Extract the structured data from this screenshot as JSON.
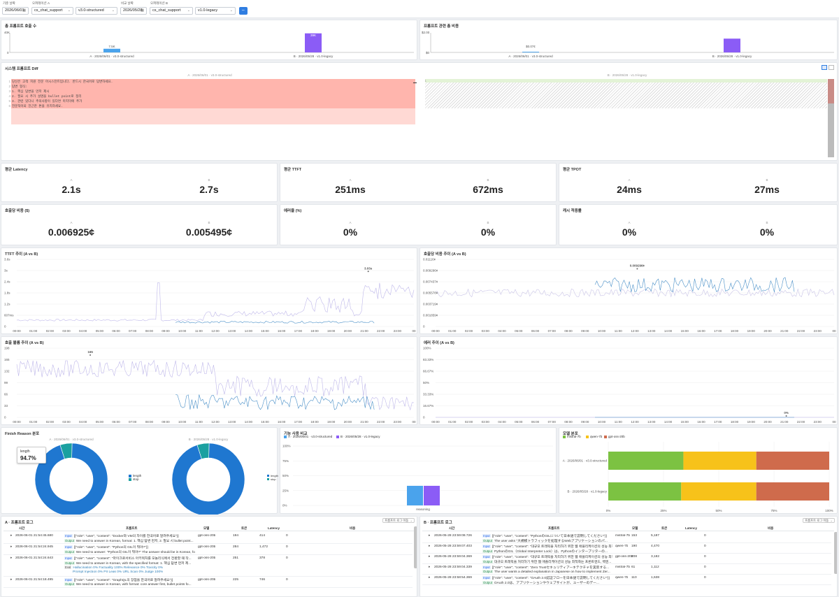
{
  "filters": {
    "base_date_label": "기준 날짜",
    "base_date": "2026/06/01",
    "operation_a_label": "오퍼레이션 A",
    "operation_a": "cs_chat_support",
    "version_a": "v3.0-structured",
    "compare_date_label": "비교 날짜",
    "compare_date": "2026/05/28",
    "operation_b_label": "오퍼레이션 B",
    "operation_b": "cs_chat_support",
    "version_b": "v1.0-legacy"
  },
  "calls": {
    "title": "총 프롬프트 호출 수",
    "y_max": "40K",
    "y_zero": "0",
    "label_a": "7.5K",
    "label_b": "39K",
    "cat_a": "A · 2026/06/01 · v3.0-structured",
    "cat_b": "B · 2026/05/28 · v1.0-legacy"
  },
  "cost": {
    "title": "프롬프트 관련 총 비용",
    "y_max": "$2.00",
    "y_zero": "$0",
    "label_a": "$0.07¢",
    "label_b": "$1.41",
    "cat_a": "A · 2026/06/01 · v3.0-structured",
    "cat_b": "B · 2026/05/28 · v1.0-legacy"
  },
  "diff": {
    "title": "시스템 프롬프트 Diff",
    "left_header": "A · 2026/06/01 · v3.0-structured",
    "right_header": "B · 2026/05/28 · v1.0-legacy",
    "lines": [
      "당신은 고객 지원 전문 어시스턴트입니다. 반드시 한국어로 답변하세요.",
      "답변 형식:",
      "1. 핵심 답변을 먼저 제시",
      "2. 필요 시 추가 설명을 bullet point로 정리",
      "3. 관련 있다니 추의사항이 있다면 마지막에 추가",
      "전문적이되 친근한 톤을 유지하세요."
    ]
  },
  "metrics": [
    {
      "title": "평균 Latency",
      "a": "2.1s",
      "b": "2.7s"
    },
    {
      "title": "평균 TTFT",
      "a": "251ms",
      "b": "672ms"
    },
    {
      "title": "평균 TPOT",
      "a": "24ms",
      "b": "27ms"
    },
    {
      "title": "호출당 비용 ($)",
      "a": "0.006925¢",
      "b": "0.005495¢"
    },
    {
      "title": "에러율 (%)",
      "a": "0%",
      "b": "0%"
    },
    {
      "title": "캐시 적중률",
      "a": "0%",
      "b": "0%"
    }
  ],
  "ab_a": "A",
  "ab_b": "B",
  "hours": [
    "00:00",
    "01:00",
    "02:00",
    "03:00",
    "04:00",
    "05:00",
    "06:00",
    "07:00",
    "08:00",
    "09:00",
    "10:00",
    "11:00",
    "12:00",
    "13:00",
    "14:00",
    "15:00",
    "16:00",
    "17:00",
    "18:00",
    "19:00",
    "20:00",
    "21:00",
    "22:00",
    "23:00",
    "00"
  ],
  "ttft": {
    "title": "TTFT 추이 (A vs B)",
    "y_ticks": [
      "3.6s",
      "3s",
      "2.4s",
      "1.8s",
      "1.2s",
      "607ms",
      "0"
    ],
    "peak": "3.03s"
  },
  "costtrend": {
    "title": "호출당 비용 추이 (A vs B)",
    "y_ticks": [
      "0.01116¢",
      "0.009296¢",
      "0.007437¢",
      "0.005578¢",
      "0.003719¢",
      "0.001859¢",
      "0"
    ],
    "peak": "0.009296¢"
  },
  "volume": {
    "title": "호출 볼륨 추이 (A vs B)",
    "y_ticks": [
      "198",
      "165",
      "132",
      "99",
      "66",
      "33",
      "0"
    ],
    "peak": "165"
  },
  "error": {
    "title": "에러 추이 (A vs B)",
    "y_ticks": [
      "100%",
      "83.33%",
      "66.67%",
      "50%",
      "33.33%",
      "16.67%",
      "0"
    ],
    "peak": "0%"
  },
  "finish": {
    "title": "Finish Reason 분포",
    "cap_a": "A · 2026/06/01 · v3.0-structured",
    "cap_b": "B · 2026/05/28 · v1.0-legacy",
    "tooltip_label": "length",
    "tooltip_value": "94.7%",
    "legend": [
      "length",
      "stop"
    ]
  },
  "feature": {
    "title": "기능 사용 비교",
    "legend_a": "A · 2026/06/01 · v3.0-structured",
    "legend_b": "B · 2026/05/28 · v1.0-legacy",
    "y_ticks": [
      "100%",
      "75%",
      "50%",
      "25%",
      "0%"
    ],
    "category": "reasoning"
  },
  "models": {
    "title": "모델 분포",
    "legend": [
      "mistral-7b",
      "qwen-7b",
      "gpt-oss-20b"
    ],
    "row_a": "A · 2026/06/01 · v3.0-structured",
    "row_b": "B · 2026/05/28 · v1.0-legacy",
    "x_ticks": [
      "0%",
      "25%",
      "50%",
      "75%",
      "100%"
    ]
  },
  "log_a": {
    "title": "A · 프롬프트 로그",
    "button": "프롬프트 로그 이동 →",
    "cols": [
      "시간",
      "프롬프트",
      "모델",
      "토큰",
      "Latency",
      "비용"
    ],
    "rows": [
      {
        "time": "2026-06-01 21:54:45.680",
        "input": "[{\"role\": \"user\", \"content\": \"Docker와 VM의 차이를 한국어로 알려주세요\"}]",
        "output": "We need to answer in Korean, format: 1. 핵심 답변 먼저, 2. 필요 시 bullet point...",
        "model": "gpt-oss-20b",
        "tokens": "194",
        "latency": "414",
        "cost": "0"
      },
      {
        "time": "2026-06-01 21:54:24.945",
        "input": "[{\"role\": \"user\", \"content\": \"Python의 GIL이 뭐야?\"}]",
        "output": "We need to answer: \"Python의 GIL이 뭐야?\" The answer should be in Korean, follow...",
        "model": "gpt-oss-20b",
        "tokens": "284",
        "latency": "1,472",
        "cost": "0"
      },
      {
        "time": "2026-06-01 21:54:24.643",
        "input": "[{\"role\": \"user\", \"content\": \"마이크로서비스 아키텍처를 모놀리식에서 전환할 때 작...",
        "output": "We need to answer in Korean, with the specified format: 1. 핵심 답변 먼저 제...",
        "model": "gpt-oss-20b",
        "tokens": "251",
        "latency": "378",
        "cost": "0",
        "eval": "Hallucination 0%  Factuality 100%  Relevance 0%  Toxicity 0%",
        "eval2": "Prompt Injection 0%  PII Leak 0%  URL Scan 0%      Judge 100%"
      },
      {
        "time": "2026-06-01 21:54:18.495",
        "input": "[{\"role\": \"user\", \"content\": \"GraphQL의 장점을 한국어로 알려주세요\"}]",
        "output": "We need to answer in Korean, with format: core answer first, bullet points fo...",
        "model": "gpt-oss-20b",
        "tokens": "225",
        "latency": "746",
        "cost": "0"
      }
    ]
  },
  "log_b": {
    "title": "B · 프롬프트 로그",
    "button": "프롬프트 로그 이동 →",
    "cols": [
      "시간",
      "프롬프트",
      "모델",
      "토큰",
      "Latency",
      "비용"
    ],
    "rows": [
      {
        "time": "2026-05-28 23:59:08.726",
        "input": "[{\"role\": \"user\", \"content\": \"PythonのGILについて日本語で説明してください\"}]",
        "output": "The user asks \"大規模トラフィックを処理するWebアプリケーションのパ...",
        "model": "mistral-7b",
        "tokens": "153",
        "latency": "5,187",
        "cost": "0"
      },
      {
        "time": "2026-05-28 23:59:07.403",
        "input": "[{\"role\": \"user\", \"content\": \"대규모 트래픽을 처리하기 위한 웹 애플리케이션의 성능 최적화...",
        "output": "PythonのGIL（Global Interpreter Lock）は、Pythonのインタープリターの...",
        "model": "qwen-7b",
        "tokens": "190",
        "latency": "4,470",
        "cost": "0"
      },
      {
        "time": "2026-05-28 23:59:04.369",
        "input": "[{\"role\": \"user\", \"content\": \"대규모 트래픽을 처리하기 위한 웹 애플리케이션의 성능 최적화...",
        "output": "대규모 트래픽을 처리하기 위한 웹 애플리케이션의 성능 최적화는 프론트엔드, 백엔...",
        "model": "gpt-oss-20b",
        "tokens": "208",
        "latency": "3,182",
        "cost": "0"
      },
      {
        "time": "2026-05-28 23:59:04.339",
        "input": "[{\"role\": \"user\", \"content\": \"Zero Trustセキュリティアーキテクチャを実装する...",
        "output": "The user wants a detailed explanation in Japanese on how to implement Zer...",
        "model": "mistral-7b",
        "tokens": "61",
        "latency": "1,112",
        "cost": "0"
      },
      {
        "time": "2026-05-28 23:58:54.369",
        "input": "[{\"role\": \"user\", \"content\": \"OAuth 2.0認証フローを日本語で説明してください\"}]",
        "output": "OAuth 2.0は、アプリケーションやウェブサイトが、ユーザーのデー...",
        "model": "qwen-7b",
        "tokens": "110",
        "latency": "1,638",
        "cost": "0"
      }
    ]
  },
  "colors": {
    "a": "#4aa3ec",
    "b": "#8b5cf6",
    "primary": "#2f7de1",
    "length": "#1f77d0",
    "stop": "#1aa0a0",
    "mistral": "#7cc242",
    "qwen": "#f7c21a",
    "gpt": "#cf6b4c",
    "del": "#ffb5ad"
  },
  "chart_data": [
    {
      "type": "bar",
      "title": "총 프롬프트 호출 수",
      "categories": [
        "A · 2026/06/01 · v3.0-structured",
        "B · 2026/05/28 · v1.0-legacy"
      ],
      "values": [
        7500,
        39000
      ],
      "ylim": [
        0,
        40000
      ]
    },
    {
      "type": "bar",
      "title": "프롬프트 관련 총 비용",
      "categories": [
        "A · 2026/06/01 · v3.0-structured",
        "B · 2026/05/28 · v1.0-legacy"
      ],
      "values": [
        0.07,
        1.41
      ],
      "ylim": [
        0,
        2
      ]
    },
    {
      "type": "bar",
      "title": "기능 사용 비교",
      "categories": [
        "reasoning"
      ],
      "series": [
        {
          "name": "A · 2026/06/01 · v3.0-structured",
          "values": [
            33
          ]
        },
        {
          "name": "B · 2026/05/28 · v1.0-legacy",
          "values": [
            33
          ]
        }
      ],
      "ylim": [
        0,
        100
      ]
    },
    {
      "type": "bar",
      "title": "모델 분포",
      "categories": [
        "A · 2026/06/01 · v3.0-structured",
        "B · 2026/05/28 · v1.0-legacy"
      ],
      "series": [
        {
          "name": "mistral-7b",
          "values": [
            34,
            33
          ]
        },
        {
          "name": "qwen-7b",
          "values": [
            33,
            34
          ]
        },
        {
          "name": "gpt-oss-20b",
          "values": [
            33,
            33
          ]
        }
      ],
      "xlim": [
        0,
        100
      ]
    },
    {
      "type": "pie",
      "title": "Finish Reason 분포",
      "labels": [
        "length",
        "stop"
      ],
      "values_a": [
        94.7,
        5.3
      ],
      "values_b": [
        94.7,
        5.3
      ]
    }
  ]
}
